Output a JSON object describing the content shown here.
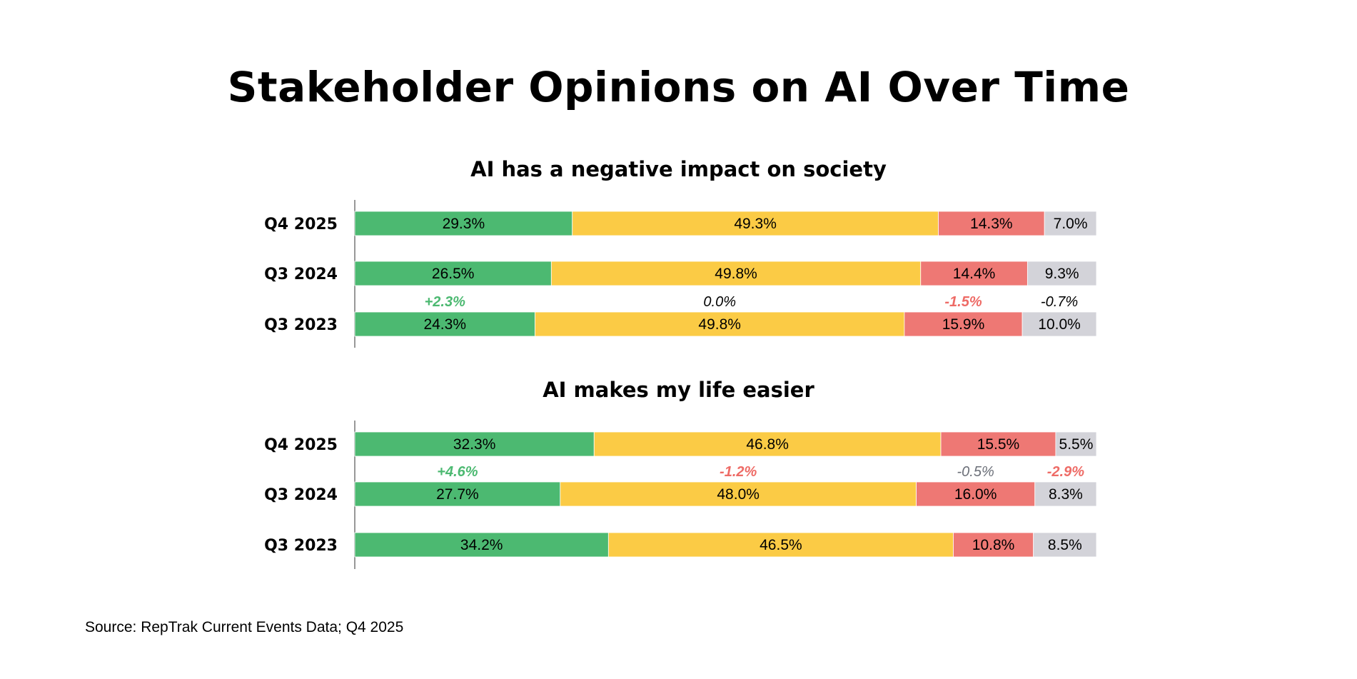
{
  "title": "Stakeholder Opinions on AI Over Time",
  "source": "Source: RepTrak Current Events Data; Q4 2025",
  "colors": {
    "segments": [
      "#4cb971",
      "#fbcb45",
      "#ee7874",
      "#d3d3d9"
    ],
    "delta_positive": "#4cb971",
    "delta_negative": "#ee6b66",
    "delta_neutral": "#000000",
    "delta_muted": "#6b6f78"
  },
  "chart_data": [
    {
      "type": "bar",
      "orientation": "horizontal",
      "stacked": true,
      "title": "AI has a negative impact on society",
      "categories": [
        "Q4 2025",
        "Q3 2024",
        "Q3 2023"
      ],
      "series_values": [
        [
          29.3,
          49.3,
          14.3,
          7.0
        ],
        [
          26.5,
          49.8,
          14.4,
          9.3
        ],
        [
          24.3,
          49.8,
          15.9,
          10.0
        ]
      ],
      "labels": [
        [
          "29.3%",
          "49.3%",
          "14.3%",
          "7.0%"
        ],
        [
          "26.5%",
          "49.8%",
          "14.4%",
          "9.3%"
        ],
        [
          "24.3%",
          "49.8%",
          "15.9%",
          "10.0%"
        ]
      ],
      "deltas": [
        {
          "row": 2,
          "labels": [
            "+2.3%",
            "0.0%",
            "-1.5%",
            "-0.7%"
          ],
          "styles": [
            "positive",
            "neutral",
            "negative",
            "neutral"
          ]
        }
      ]
    },
    {
      "type": "bar",
      "orientation": "horizontal",
      "stacked": true,
      "title": "AI makes my life easier",
      "categories": [
        "Q4 2025",
        "Q3 2024",
        "Q3 2023"
      ],
      "series_values": [
        [
          32.3,
          46.8,
          15.5,
          5.5
        ],
        [
          27.7,
          48.0,
          16.0,
          8.3
        ],
        [
          34.2,
          46.5,
          10.8,
          8.5
        ]
      ],
      "labels": [
        [
          "32.3%",
          "46.8%",
          "15.5%",
          "5.5%"
        ],
        [
          "27.7%",
          "48.0%",
          "16.0%",
          "8.3%"
        ],
        [
          "34.2%",
          "46.5%",
          "10.8%",
          "8.5%"
        ]
      ],
      "deltas": [
        {
          "row": 1,
          "labels": [
            "+4.6%",
            "-1.2%",
            "-0.5%",
            "-2.9%"
          ],
          "styles": [
            "positive",
            "negative",
            "muted",
            "negative"
          ]
        }
      ]
    }
  ]
}
